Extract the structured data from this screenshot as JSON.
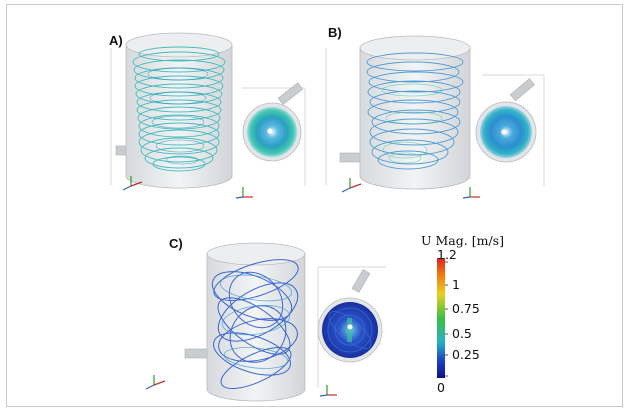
{
  "panels": [
    {
      "label": "A)"
    },
    {
      "label": "B)"
    },
    {
      "label": "C)"
    }
  ],
  "colorbar": {
    "title": "U Mag. [m/s]",
    "ticks": [
      "1.2",
      "1",
      "0.75",
      "0.5",
      "0.25",
      "0"
    ],
    "colors": [
      "#e02020",
      "#f07a10",
      "#e8d020",
      "#3cc040",
      "#28b0c8",
      "#1a3fbf",
      "#10108a"
    ]
  },
  "colors": {
    "panel_a_streamlines": "#2ab3b8",
    "panel_b_streamlines": "#3a8fd0",
    "panel_c_streamlines": "#1e4fd0",
    "cylinder_fill": "#e9ecee",
    "cylinder_edge": "#b8bcc0"
  }
}
